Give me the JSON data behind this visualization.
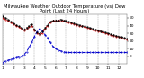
{
  "title": "Milwaukee Weather Outdoor Temperature (vs) Dew Point (Last 24 Hours)",
  "bg_color": "#ffffff",
  "grid_color": "#999999",
  "ylim": [
    -10,
    55
  ],
  "ytick_values": [
    0,
    10,
    20,
    30,
    40,
    50
  ],
  "ytick_labels": [
    "0",
    "10",
    "20",
    "30",
    "40",
    "50"
  ],
  "temp_color": "#cc0000",
  "dew_color": "#0000cc",
  "black_color": "#000000",
  "temp_data": [
    50,
    48,
    46,
    44,
    42,
    40,
    38,
    36,
    34,
    36,
    38,
    40,
    34,
    30,
    28,
    30,
    36,
    40,
    44,
    46,
    46,
    46,
    47,
    46,
    45,
    44,
    43,
    42,
    41,
    40,
    39,
    38,
    37,
    36,
    35,
    34,
    33,
    32,
    31,
    30,
    29,
    28,
    27,
    26,
    25,
    24,
    23,
    22
  ],
  "dew_data": [
    -8,
    -6,
    -5,
    -4,
    -3,
    -2,
    -1,
    0,
    2,
    6,
    12,
    18,
    26,
    32,
    36,
    33,
    28,
    24,
    18,
    13,
    10,
    8,
    7,
    6,
    5,
    5,
    5,
    5,
    5,
    5,
    5,
    5,
    5,
    5,
    5,
    5,
    5,
    5,
    5,
    5,
    5,
    5,
    5,
    5,
    5,
    5,
    5,
    5
  ],
  "black_data": [
    52,
    50,
    48,
    45,
    43,
    41,
    39,
    37,
    35,
    37,
    40,
    42,
    35,
    31,
    29,
    32,
    37,
    41,
    45,
    47,
    47,
    47,
    48,
    47,
    46,
    45,
    44,
    43,
    42,
    41,
    40,
    39,
    38,
    37,
    36,
    35,
    34,
    33,
    32,
    31,
    30,
    29,
    28,
    27,
    26,
    25,
    24,
    23
  ],
  "n_points": 48,
  "vgrid_every": 4,
  "xlabel_every": 4,
  "xlabel_labels": [
    "1",
    "2",
    "3",
    "4",
    "5",
    "6",
    "7",
    "8",
    "9",
    "10",
    "11",
    "12"
  ],
  "title_fontsize": 3.8,
  "tick_fontsize": 3.2,
  "linewidth": 0.7,
  "markersize": 0.8,
  "dot_size": 1.2
}
